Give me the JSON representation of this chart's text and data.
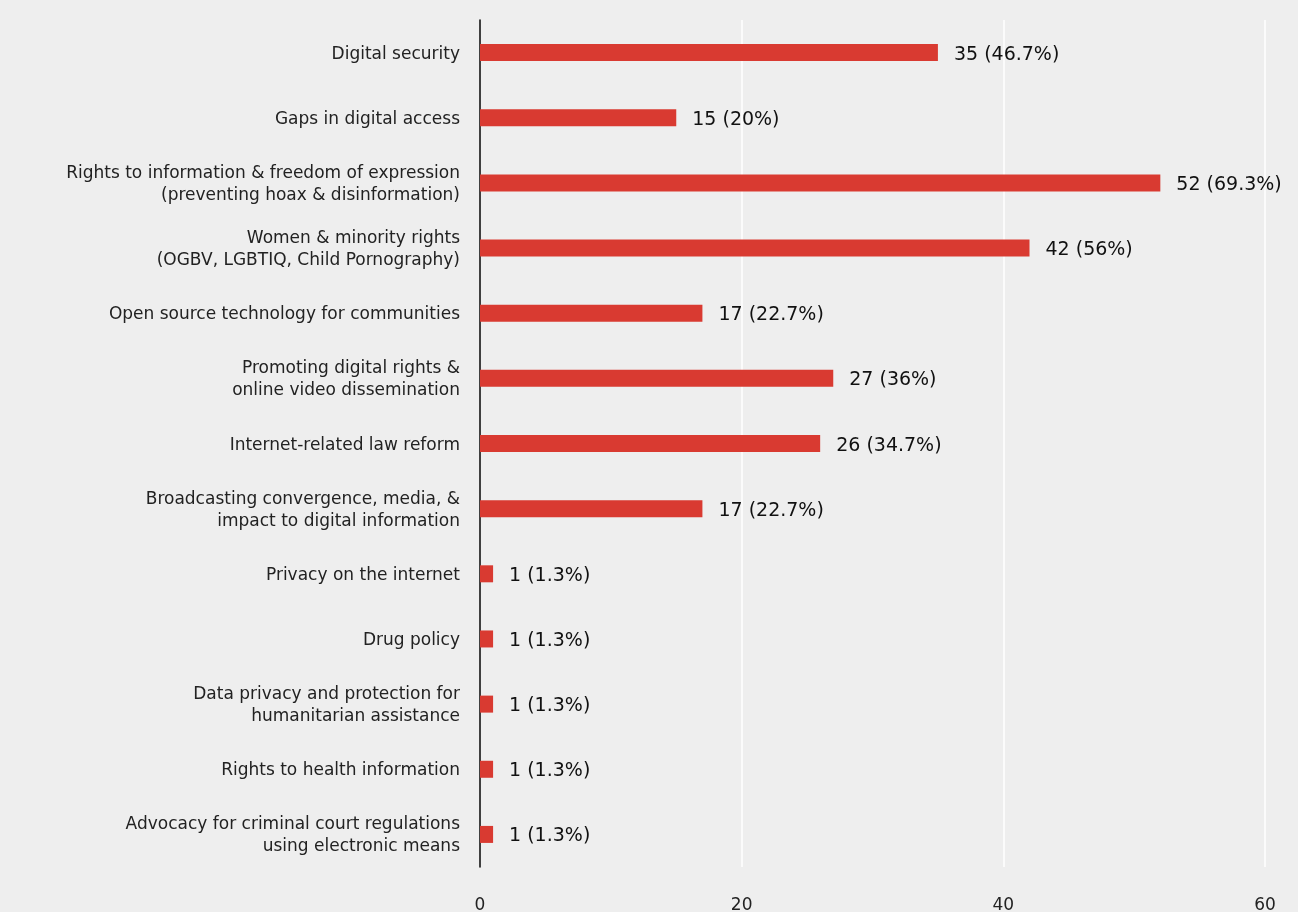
{
  "chart_data": {
    "type": "bar",
    "orientation": "horizontal",
    "categories": [
      "Digital security",
      "Gaps in digital access",
      "Rights to information & freedom of expression\n(preventing hoax & disinformation)",
      "Women & minority rights\n(OGBV, LGBTIQ, Child Pornography)",
      "Open source technology for communities",
      "Promoting digital rights &\nonline video dissemination",
      "Internet-related law reform",
      "Broadcasting convergence, media, &\nimpact to digital information",
      "Privacy on the internet",
      "Drug policy",
      "Data privacy and protection for\nhumanitarian assistance",
      "Rights to health information",
      "Advocacy for criminal court regulations\nusing electronic means"
    ],
    "values": [
      35,
      15,
      52,
      42,
      17,
      27,
      26,
      17,
      1,
      1,
      1,
      1,
      1
    ],
    "value_labels": [
      "35 (46.7%)",
      "15 (20%)",
      "52 (69.3%)",
      "42 (56%)",
      "17 (22.7%)",
      "27 (36%)",
      "26 (34.7%)",
      "17 (22.7%)",
      "1 (1.3%)",
      "1 (1.3%)",
      "1 (1.3%)",
      "1 (1.3%)",
      "1 (1.3%)"
    ],
    "color": "#d93a31",
    "xlim": [
      0,
      60
    ],
    "xticks": [
      0,
      20,
      40,
      60
    ],
    "grid": "x"
  }
}
